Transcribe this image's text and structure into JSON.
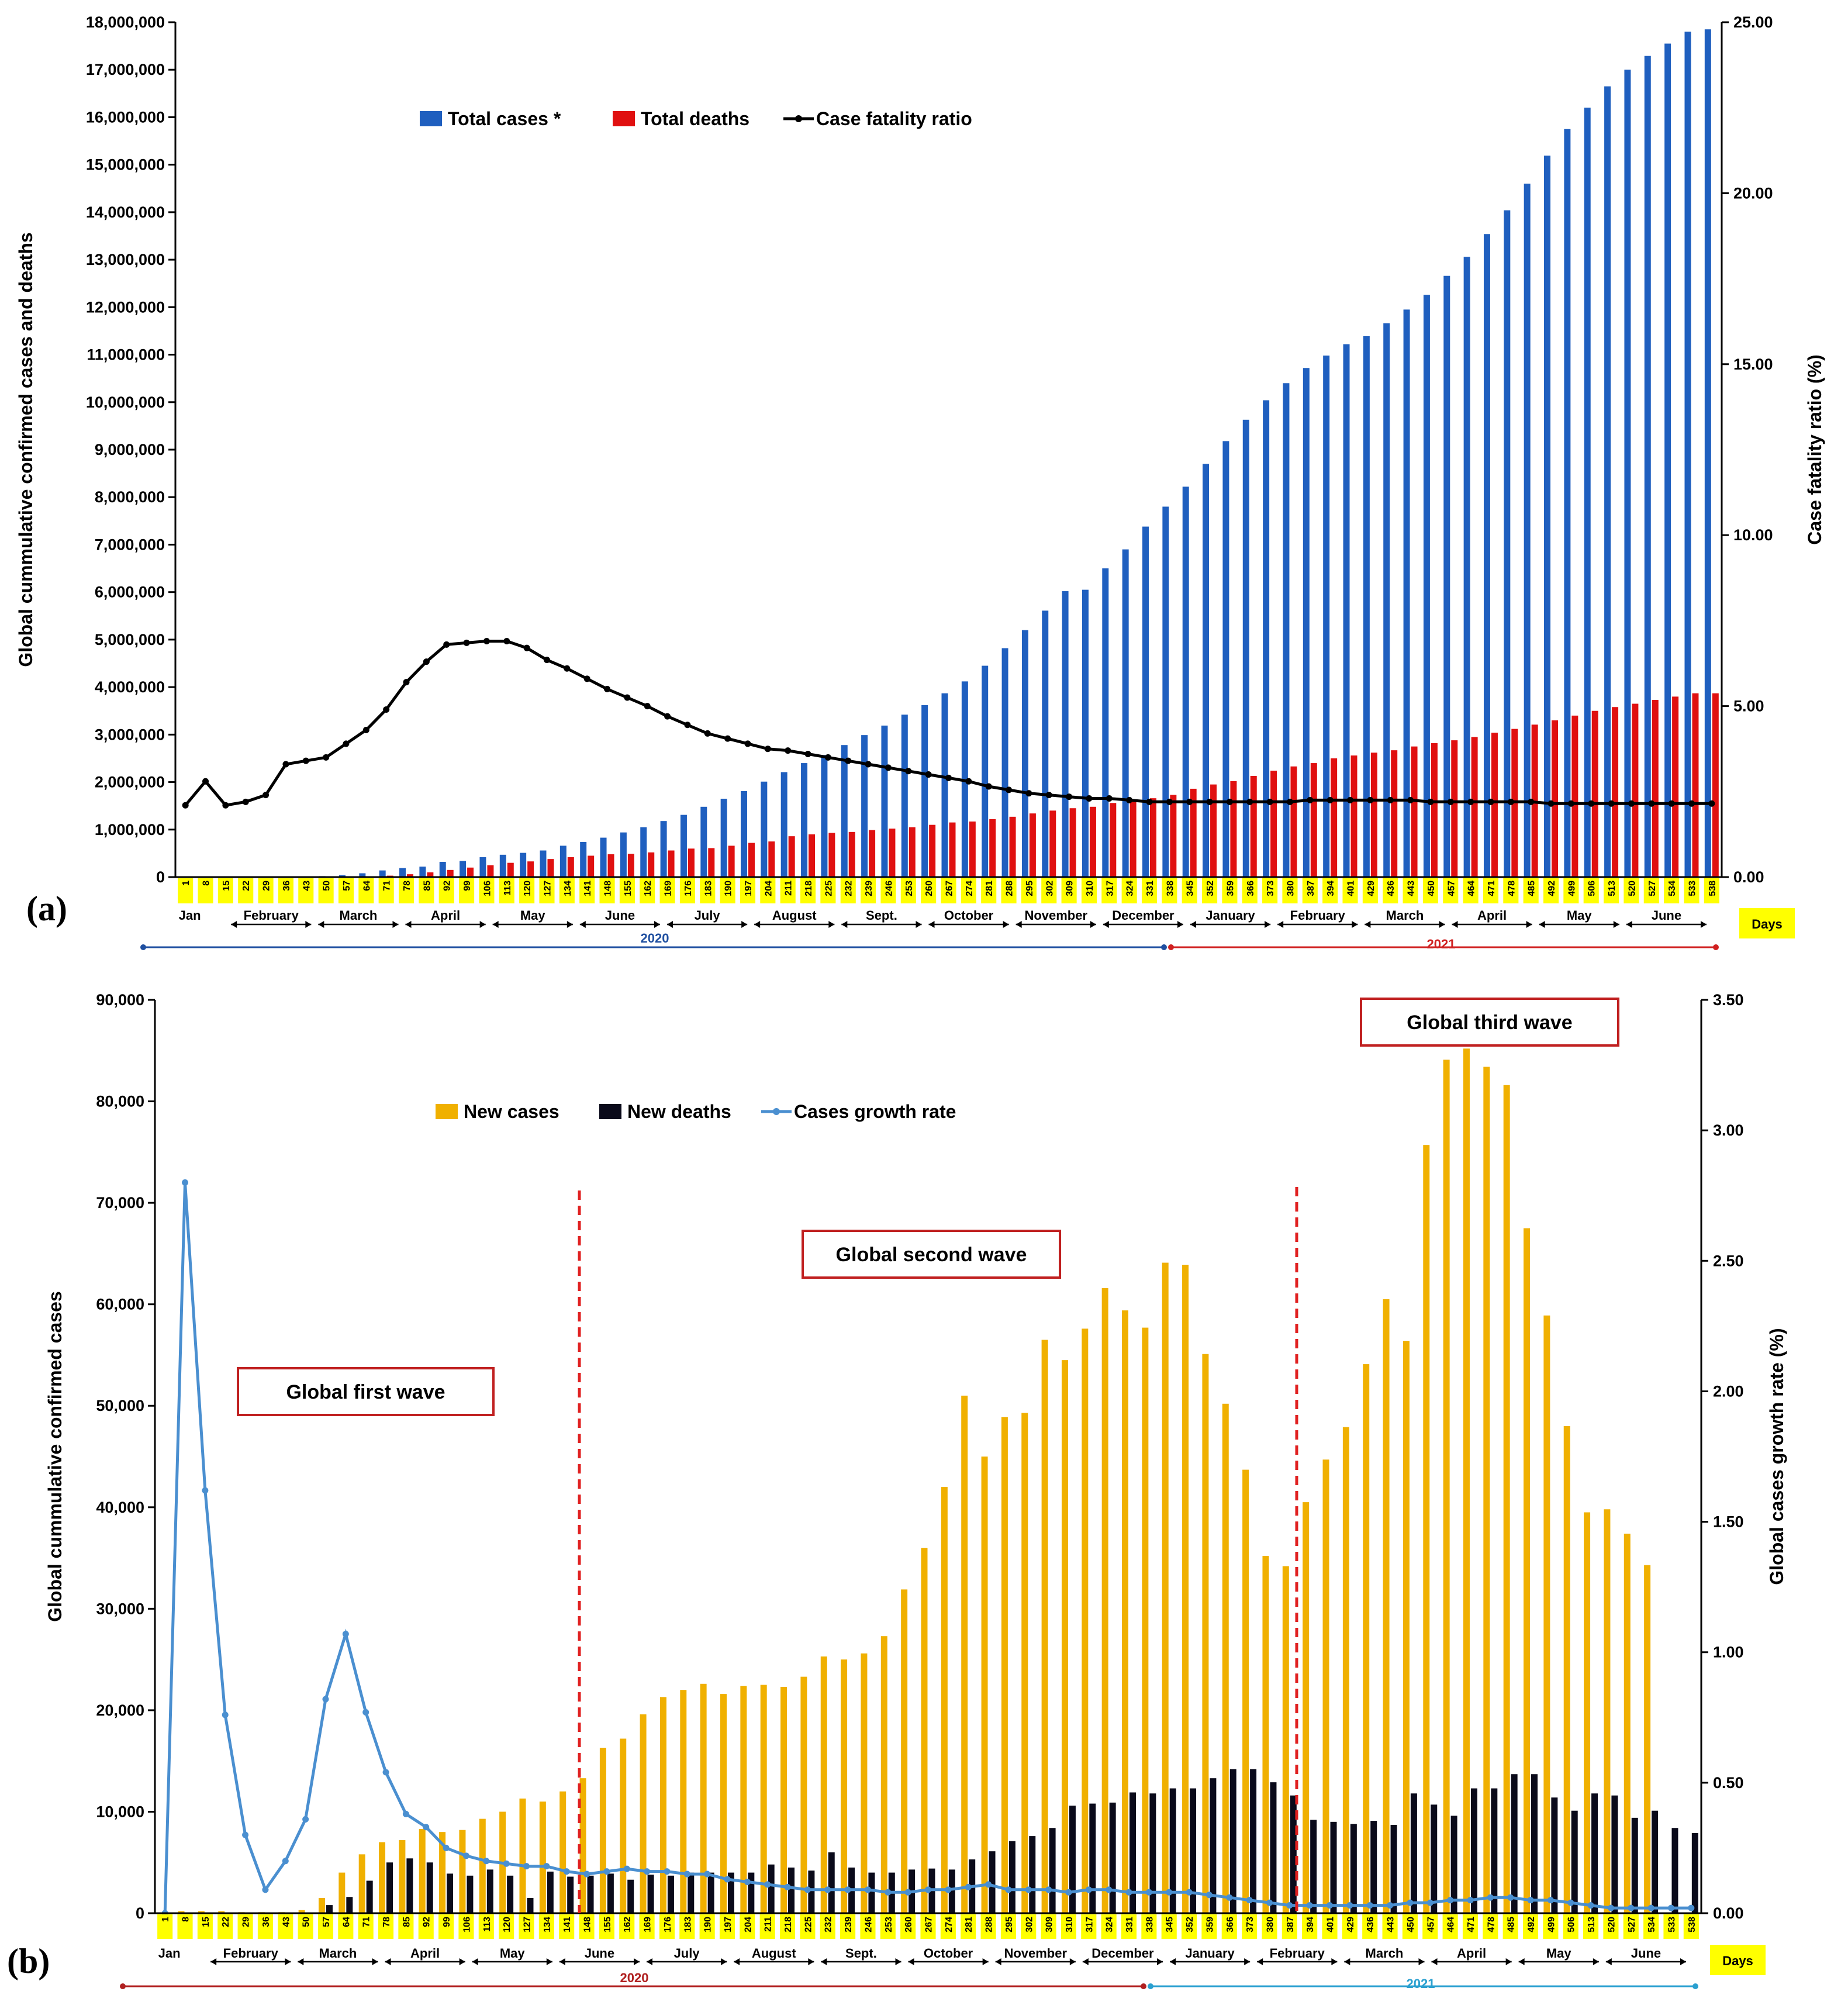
{
  "panels": {
    "a_label": "(a)",
    "b_label": "(b)"
  },
  "days": [
    "1",
    "8",
    "15",
    "22",
    "29",
    "36",
    "43",
    "50",
    "57",
    "64",
    "71",
    "78",
    "85",
    "92",
    "99",
    "106",
    "113",
    "120",
    "127",
    "134",
    "141",
    "148",
    "155",
    "162",
    "169",
    "176",
    "183",
    "190",
    "197",
    "204",
    "211",
    "218",
    "225",
    "232",
    "239",
    "246",
    "253",
    "260",
    "267",
    "274",
    "281",
    "288",
    "295",
    "302",
    "309",
    "310",
    "317",
    "324",
    "331",
    "338",
    "345",
    "352",
    "359",
    "366",
    "373",
    "380",
    "387",
    "394",
    "401",
    "429",
    "436",
    "443",
    "450",
    "457",
    "464",
    "471",
    "478",
    "485",
    "492",
    "499",
    "506",
    "513",
    "520",
    "527",
    "534",
    "533",
    "538"
  ],
  "months": [
    "Jan",
    "February",
    "March",
    "April",
    "May",
    "June",
    "July",
    "August",
    "Sept.",
    "October",
    "November",
    "December",
    "January",
    "February",
    "March",
    "April",
    "May",
    "June"
  ],
  "years": {
    "first": "2020",
    "second": "2021"
  },
  "days_label": "Days",
  "chart_data": [
    {
      "type": "bar",
      "id": "a",
      "title": "",
      "ylabel": "Global cummulative confirmed cases and deaths",
      "y2label": "Case fatality ratio (%)",
      "ylim": [
        0,
        18000000
      ],
      "y2lim": [
        0,
        25
      ],
      "yticks": [
        "0",
        "1,000,000",
        "2,000,000",
        "3,000,000",
        "4,000,000",
        "5,000,000",
        "6,000,000",
        "7,000,000",
        "8,000,000",
        "9,000,000",
        "10,000,000",
        "11,000,000",
        "12,000,000",
        "13,000,000",
        "14,000,000",
        "15,000,000",
        "16,000,000",
        "17,000,000",
        "18,000,000"
      ],
      "y2ticks": [
        "0.00",
        "5.00",
        "10.00",
        "15.00",
        "20.00",
        "25.00"
      ],
      "legend": {
        "position": "top-left",
        "entries": [
          "Total cases *",
          "Total deaths",
          "Case fatality ratio"
        ]
      },
      "colors": {
        "cases": "#1f5fbf",
        "deaths": "#e01010",
        "line": "#000000",
        "daybox": "#ffff00"
      },
      "series": [
        {
          "name": "Total cases *",
          "axis": "left",
          "kind": "bar",
          "values": [
            0,
            0,
            100,
            5000,
            8000,
            10000,
            15000,
            20000,
            40000,
            80000,
            140000,
            190000,
            220000,
            320000,
            340000,
            420000,
            470000,
            510000,
            560000,
            660000,
            740000,
            830000,
            940000,
            1050000,
            1180000,
            1310000,
            1480000,
            1650000,
            1810000,
            2010000,
            2210000,
            2400000,
            2570000,
            2780000,
            2990000,
            3190000,
            3420000,
            3620000,
            3870000,
            4120000,
            4450000,
            4820000,
            5200000,
            5610000,
            6020000,
            6050000,
            6500000,
            6900000,
            7380000,
            7800000,
            8220000,
            8700000,
            9180000,
            9630000,
            10040000,
            10400000,
            10720000,
            10980000,
            11220000,
            11390000,
            11660000,
            11950000,
            12260000,
            12660000,
            13060000,
            13540000,
            14040000,
            14600000,
            15190000,
            15750000,
            16200000,
            16650000,
            17000000,
            17290000,
            17550000,
            17800000,
            17850000
          ]
        },
        {
          "name": "Total deaths",
          "axis": "left",
          "kind": "bar",
          "values": [
            0,
            0,
            0,
            0,
            0,
            0,
            0,
            0,
            5000,
            10000,
            30000,
            60000,
            100000,
            150000,
            200000,
            250000,
            300000,
            330000,
            380000,
            420000,
            450000,
            480000,
            490000,
            520000,
            560000,
            600000,
            610000,
            660000,
            720000,
            750000,
            860000,
            900000,
            930000,
            950000,
            990000,
            1020000,
            1050000,
            1100000,
            1150000,
            1170000,
            1220000,
            1270000,
            1340000,
            1400000,
            1450000,
            1480000,
            1560000,
            1620000,
            1660000,
            1730000,
            1860000,
            1950000,
            2020000,
            2130000,
            2240000,
            2330000,
            2400000,
            2500000,
            2560000,
            2620000,
            2670000,
            2750000,
            2820000,
            2880000,
            2950000,
            3040000,
            3120000,
            3210000,
            3300000,
            3400000,
            3500000,
            3580000,
            3650000,
            3730000,
            3800000,
            3870000,
            3870000
          ]
        },
        {
          "name": "Case fatality ratio",
          "axis": "right",
          "kind": "line",
          "values": [
            2.1,
            2.8,
            2.1,
            2.2,
            2.4,
            3.3,
            3.4,
            3.5,
            3.9,
            4.3,
            4.9,
            5.7,
            6.3,
            6.8,
            6.85,
            6.9,
            6.9,
            6.7,
            6.35,
            6.1,
            5.8,
            5.5,
            5.25,
            5.0,
            4.7,
            4.45,
            4.2,
            4.05,
            3.9,
            3.75,
            3.7,
            3.6,
            3.5,
            3.4,
            3.3,
            3.2,
            3.1,
            3.0,
            2.9,
            2.8,
            2.65,
            2.55,
            2.45,
            2.4,
            2.35,
            2.3,
            2.3,
            2.25,
            2.2,
            2.2,
            2.2,
            2.2,
            2.2,
            2.2,
            2.2,
            2.2,
            2.25,
            2.25,
            2.25,
            2.25,
            2.25,
            2.25,
            2.2,
            2.2,
            2.2,
            2.2,
            2.2,
            2.2,
            2.15,
            2.15,
            2.15,
            2.15,
            2.15,
            2.15,
            2.15,
            2.15,
            2.15
          ]
        }
      ]
    },
    {
      "type": "bar",
      "id": "b",
      "title": "",
      "ylabel": "Global cummulative confirmed cases",
      "y2label": "Global cases growth rate (%)",
      "ylim": [
        0,
        90000
      ],
      "y2lim": [
        0,
        3.5
      ],
      "yticks": [
        "0",
        "10,000",
        "20,000",
        "30,000",
        "40,000",
        "50,000",
        "60,000",
        "70,000",
        "80,000",
        "90,000"
      ],
      "y2ticks": [
        "0.00",
        "0.50",
        "1.00",
        "1.50",
        "2.00",
        "2.50",
        "3.00",
        "3.50"
      ],
      "legend": {
        "position": "top-left",
        "entries": [
          "New cases",
          "New deaths",
          "Cases growth rate"
        ]
      },
      "colors": {
        "cases": "#f0b000",
        "deaths": "#0a0a1a",
        "line": "#4a8fd0",
        "daybox": "#ffff00",
        "divider": "#e02020",
        "boxborder": "#c02020"
      },
      "annotations": [
        "Global first wave",
        "Global second wave",
        "Global third wave"
      ],
      "series": [
        {
          "name": "New cases",
          "axis": "left",
          "kind": "bar",
          "values": [
            0,
            200,
            200,
            200,
            100,
            100,
            100,
            300,
            1500,
            4000,
            5800,
            7000,
            7200,
            8300,
            8000,
            8200,
            9300,
            10000,
            11300,
            11000,
            12000,
            13300,
            16300,
            17200,
            19600,
            21300,
            22000,
            22600,
            21600,
            22400,
            22500,
            22300,
            23300,
            25300,
            25000,
            25600,
            27300,
            31900,
            36000,
            42000,
            51000,
            45000,
            48900,
            49300,
            56500,
            54500,
            57600,
            61600,
            59400,
            57700,
            64100,
            63900,
            55100,
            50200,
            43700,
            35200,
            34200,
            40500,
            44700,
            47900,
            54100,
            60500,
            56400,
            75700,
            84100,
            85200,
            83400,
            81600,
            67500,
            58900,
            48000,
            39500,
            39800,
            37400,
            34300,
            0,
            0
          ]
        },
        {
          "name": "New deaths",
          "axis": "left",
          "kind": "bar",
          "values": [
            0,
            0,
            0,
            0,
            0,
            0,
            0,
            0,
            800,
            1600,
            3200,
            5000,
            5400,
            5000,
            3900,
            3700,
            4300,
            3700,
            1500,
            4100,
            3600,
            3700,
            3900,
            3300,
            3800,
            3700,
            4000,
            4000,
            4000,
            4000,
            4800,
            4500,
            4200,
            6000,
            4500,
            4000,
            4000,
            4300,
            4400,
            4300,
            5300,
            6100,
            7100,
            7600,
            8400,
            10600,
            10800,
            10900,
            11900,
            11800,
            12300,
            12300,
            13300,
            14200,
            14200,
            12900,
            11600,
            9200,
            9000,
            8800,
            9100,
            8700,
            11800,
            10700,
            9600,
            12300,
            12300,
            13700,
            13700,
            11400,
            10100,
            11800,
            11600,
            9400,
            10100,
            8400,
            7900
          ]
        },
        {
          "name": "Cases growth rate",
          "axis": "right",
          "kind": "line",
          "values": [
            0,
            2.8,
            1.62,
            0.76,
            0.3,
            0.09,
            0.2,
            0.36,
            0.82,
            1.07,
            0.77,
            0.54,
            0.38,
            0.33,
            0.25,
            0.22,
            0.2,
            0.19,
            0.18,
            0.18,
            0.16,
            0.15,
            0.16,
            0.17,
            0.16,
            0.16,
            0.15,
            0.15,
            0.13,
            0.12,
            0.11,
            0.1,
            0.09,
            0.09,
            0.09,
            0.09,
            0.08,
            0.08,
            0.09,
            0.09,
            0.1,
            0.11,
            0.09,
            0.09,
            0.09,
            0.08,
            0.09,
            0.09,
            0.08,
            0.08,
            0.08,
            0.08,
            0.07,
            0.06,
            0.05,
            0.04,
            0.03,
            0.03,
            0.03,
            0.03,
            0.03,
            0.03,
            0.04,
            0.04,
            0.05,
            0.05,
            0.06,
            0.06,
            0.05,
            0.05,
            0.04,
            0.03,
            0.02,
            0.02,
            0.02,
            0.02,
            0.02
          ]
        }
      ]
    }
  ]
}
